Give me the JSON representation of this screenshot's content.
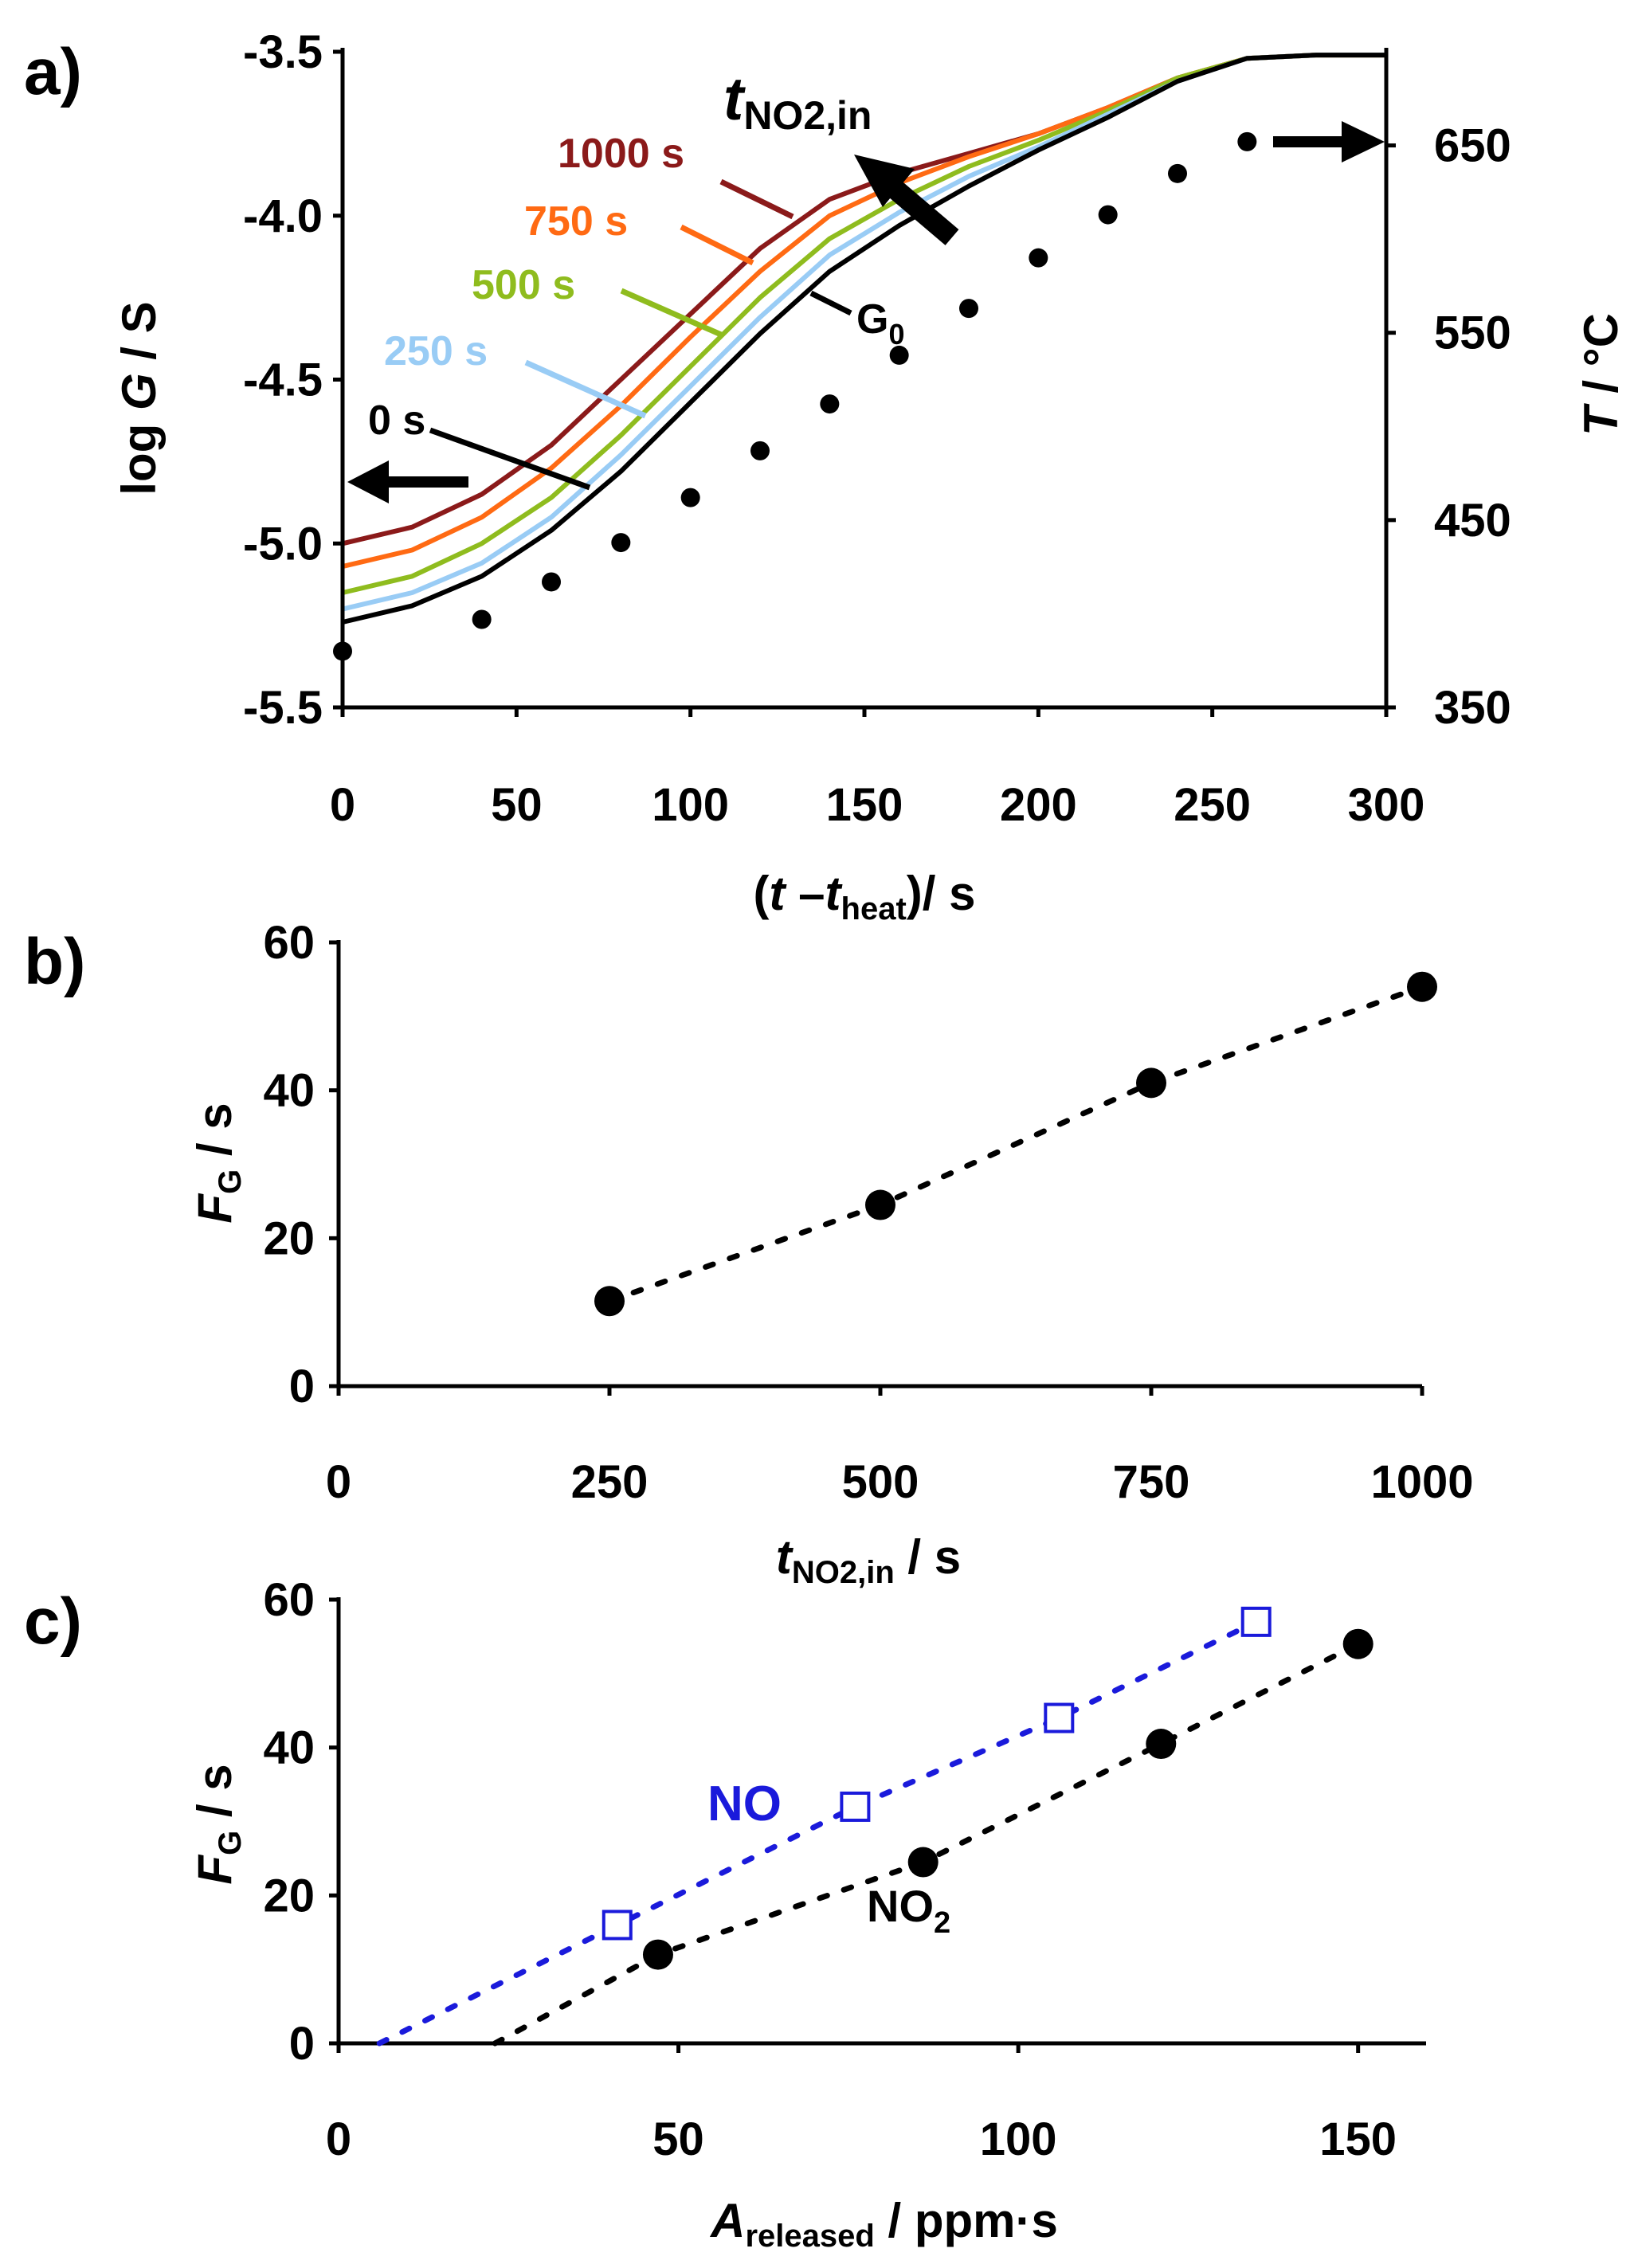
{
  "chart_data": [
    {
      "panel": "a)",
      "type": "line",
      "xlabel": {
        "pre": "(",
        "main": "t",
        "mid": " –",
        "main2": "t",
        "sub": "heat",
        "post": ")/ s"
      },
      "ylabel": {
        "main": "log ",
        "italic": "G",
        "post": " / S"
      },
      "y2label": {
        "italic": "T",
        "post": " / °C"
      },
      "xlim": [
        0,
        300
      ],
      "ylim": [
        -5.5,
        -3.5
      ],
      "y2lim": [
        350,
        700
      ],
      "xticks": [
        "0",
        "50",
        "100",
        "150",
        "200",
        "250",
        "300"
      ],
      "yticks": [
        "-5.5",
        "-5.0",
        "-4.5",
        "-4.0",
        "-3.5"
      ],
      "y2ticks": [
        "350",
        "450",
        "550",
        "650"
      ],
      "x_values": [
        0,
        20,
        40,
        60,
        80,
        100,
        120,
        140,
        160,
        180,
        200,
        220,
        240,
        260,
        280,
        300
      ],
      "series": [
        {
          "name": "1000 s",
          "color": "#8b1a1a",
          "values": [
            -5.0,
            -4.95,
            -4.85,
            -4.7,
            -4.5,
            -4.3,
            -4.1,
            -3.95,
            -3.87,
            -3.81,
            -3.75,
            -3.67,
            -3.58,
            -3.52,
            -3.51,
            -3.51
          ]
        },
        {
          "name": "750 s",
          "color": "#ff6a13",
          "values": [
            -5.07,
            -5.02,
            -4.92,
            -4.77,
            -4.58,
            -4.37,
            -4.17,
            -4.0,
            -3.9,
            -3.82,
            -3.75,
            -3.67,
            -3.58,
            -3.52,
            -3.51,
            -3.51
          ]
        },
        {
          "name": "500 s",
          "color": "#8fbc1e",
          "values": [
            -5.15,
            -5.1,
            -5.0,
            -4.86,
            -4.67,
            -4.46,
            -4.25,
            -4.07,
            -3.95,
            -3.85,
            -3.77,
            -3.68,
            -3.58,
            -3.52,
            -3.51,
            -3.51
          ]
        },
        {
          "name": "250 s",
          "color": "#99ccf5",
          "values": [
            -5.2,
            -5.15,
            -5.06,
            -4.92,
            -4.73,
            -4.52,
            -4.31,
            -4.12,
            -3.99,
            -3.88,
            -3.79,
            -3.69,
            -3.59,
            -3.52,
            -3.51,
            -3.51
          ]
        },
        {
          "name": "0 s",
          "color": "#000000",
          "values": [
            -5.24,
            -5.19,
            -5.1,
            -4.96,
            -4.78,
            -4.57,
            -4.36,
            -4.17,
            -4.03,
            -3.91,
            -3.8,
            -3.7,
            -3.59,
            -3.52,
            -3.51,
            -3.51
          ]
        }
      ],
      "temperature": {
        "axis": "right",
        "x": [
          0,
          40,
          60,
          80,
          100,
          120,
          140,
          160,
          180,
          200,
          220,
          240,
          260
        ],
        "y": [
          380,
          397,
          417,
          438,
          462,
          487,
          512,
          538,
          563,
          590,
          613,
          635,
          652
        ]
      },
      "labels": {
        "l1000": "1000 s",
        "l750": "750 s",
        "l500": "500 s",
        "l250": "250 s",
        "l0": "0 s",
        "g0": "G",
        "g0_sub": "0",
        "tno2": "t",
        "tno2_sub": "NO2,in"
      }
    },
    {
      "panel": "b)",
      "type": "scatter",
      "xlabel": {
        "main": "t",
        "sub": "NO2,in",
        "post": " / s"
      },
      "ylabel": {
        "main": "F",
        "sub": "G",
        "post": " / s"
      },
      "xlim": [
        0,
        1000
      ],
      "ylim": [
        0,
        60
      ],
      "xticks": [
        "0",
        "250",
        "500",
        "750",
        "1000"
      ],
      "yticks": [
        "0",
        "20",
        "40",
        "60"
      ],
      "x": [
        250,
        500,
        750,
        1000
      ],
      "y": [
        11.5,
        24.5,
        41,
        54
      ],
      "fit_line": true
    },
    {
      "panel": "c)",
      "type": "scatter",
      "xlabel": {
        "main": "A",
        "sub": "released",
        "post": " / ppm·s"
      },
      "ylabel": {
        "main": "F",
        "sub": "G",
        "post": " / s"
      },
      "xlim": [
        0,
        160
      ],
      "ylim": [
        0,
        60
      ],
      "xticks": [
        "0",
        "50",
        "100",
        "150"
      ],
      "yticks": [
        "0",
        "20",
        "40",
        "60"
      ],
      "series": [
        {
          "name": "NO",
          "color": "#1a1adb",
          "marker": "open-square",
          "x": [
            41,
            76,
            106,
            135
          ],
          "y": [
            16,
            32,
            44,
            57
          ],
          "fit_from": [
            6,
            0
          ]
        },
        {
          "name": "NO",
          "sub": "2",
          "color": "#000000",
          "marker": "filled-circle",
          "x": [
            47,
            86,
            121,
            150
          ],
          "y": [
            12,
            24.5,
            40.5,
            54
          ],
          "fit_from": [
            23,
            0
          ]
        }
      ]
    }
  ]
}
